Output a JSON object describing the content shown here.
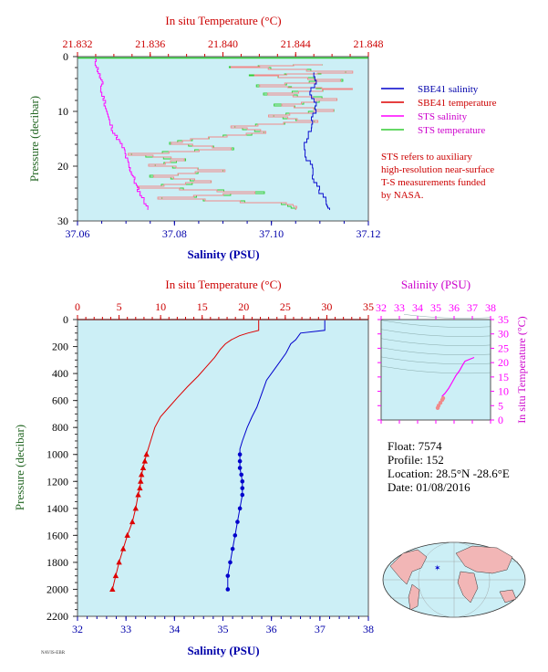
{
  "float_info": {
    "float": "Float:  7574",
    "profile": "Profile:  152",
    "location": "Location:  28.5°N  -28.6°E",
    "date": "Date:  01/08/2016"
  },
  "footer_code": "NAVIS-EBR",
  "colors": {
    "plot_bg": "#cceff6",
    "temp": "#dd0000",
    "sal": "#0000cc",
    "sts_sal": "#ff00ff",
    "sts_temp": "#33cc33",
    "temp_axis": "#cc0000",
    "sal_axis": "#0000aa",
    "pressure_axis": "#226622"
  },
  "chart_data": [
    {
      "type": "line",
      "name": "near-surface",
      "title_top": "In situ Temperature (°C)",
      "xlabel": "Salinity (PSU)",
      "ylabel": "Pressure (decibar)",
      "temp_lim": [
        21.832,
        21.848
      ],
      "temp_ticks": [
        "21.832",
        "21.836",
        "21.840",
        "21.844",
        "21.848"
      ],
      "sal_lim": [
        37.06,
        37.12
      ],
      "sal_ticks": [
        "37.06",
        "37.08",
        "37.10",
        "37.12"
      ],
      "p_lim": [
        0,
        30
      ],
      "p_ticks": [
        "0",
        "10",
        "20",
        "30"
      ],
      "legend": [
        "SBE41 salinity",
        "SBE41 temperature",
        "STS salinity",
        "STS temperature"
      ],
      "note": [
        "STS refers to auxiliary",
        "high-resolution near-surface",
        "T-S measurements funded",
        "by NASA."
      ],
      "sts_salinity": [
        [
          37.0635,
          0.5
        ],
        [
          37.064,
          2
        ],
        [
          37.0645,
          3.5
        ],
        [
          37.065,
          5
        ],
        [
          37.0648,
          6.5
        ],
        [
          37.0655,
          8
        ],
        [
          37.066,
          10
        ],
        [
          37.0665,
          12
        ],
        [
          37.0675,
          14
        ],
        [
          37.0685,
          15.5
        ],
        [
          37.0695,
          17
        ],
        [
          37.07,
          18.5
        ],
        [
          37.0705,
          20
        ],
        [
          37.071,
          21
        ],
        [
          37.0715,
          22
        ],
        [
          37.072,
          23.5
        ],
        [
          37.0728,
          25
        ],
        [
          37.0738,
          26.5
        ],
        [
          37.0745,
          28
        ]
      ],
      "sts_temperature": [
        [
          21.8455,
          1.5
        ],
        [
          21.8405,
          2
        ],
        [
          21.847,
          3
        ],
        [
          21.8415,
          3.5
        ],
        [
          21.8465,
          4.5
        ],
        [
          21.842,
          5.5
        ],
        [
          21.847,
          6
        ],
        [
          21.8425,
          7
        ],
        [
          21.8465,
          8
        ],
        [
          21.843,
          9
        ],
        [
          21.846,
          10
        ],
        [
          21.8425,
          11
        ],
        [
          21.845,
          12
        ],
        [
          21.8405,
          13
        ],
        [
          21.8425,
          14
        ],
        [
          21.839,
          15
        ],
        [
          21.837,
          16
        ],
        [
          21.8405,
          17
        ],
        [
          21.835,
          18
        ],
        [
          21.838,
          19
        ],
        [
          21.836,
          20
        ],
        [
          21.84,
          21
        ],
        [
          21.836,
          22
        ],
        [
          21.8395,
          23
        ],
        [
          21.8355,
          24
        ],
        [
          21.842,
          25
        ],
        [
          21.8365,
          26
        ],
        [
          21.8435,
          27
        ],
        [
          21.844,
          28
        ]
      ],
      "sbe_salinity": [
        [
          37.1085,
          3
        ],
        [
          37.109,
          5
        ],
        [
          37.108,
          7
        ],
        [
          37.1095,
          9
        ],
        [
          37.1085,
          11
        ],
        [
          37.108,
          13
        ],
        [
          37.1075,
          15
        ],
        [
          37.107,
          17
        ],
        [
          37.1075,
          19
        ],
        [
          37.1085,
          21
        ],
        [
          37.109,
          23
        ],
        [
          37.11,
          25
        ],
        [
          37.1115,
          27
        ],
        [
          37.112,
          28
        ]
      ],
      "sbe_temperature": [
        [
          21.8448,
          3
        ],
        [
          21.8445,
          10
        ]
      ]
    },
    {
      "type": "line",
      "name": "full-profile",
      "title_top": "In situ Temperature (°C)",
      "xlabel": "Salinity (PSU)",
      "ylabel": "Pressure (decibar)",
      "temp_lim": [
        0,
        35
      ],
      "temp_ticks": [
        "0",
        "5",
        "10",
        "15",
        "20",
        "25",
        "30",
        "35"
      ],
      "sal_lim": [
        32,
        38
      ],
      "sal_ticks": [
        "32",
        "33",
        "34",
        "35",
        "36",
        "37",
        "38"
      ],
      "p_lim": [
        0,
        2200
      ],
      "p_ticks": [
        "0",
        "200",
        "400",
        "600",
        "800",
        "1000",
        "1200",
        "1400",
        "1600",
        "1800",
        "2000",
        "2200"
      ],
      "temperature": [
        [
          21.8,
          5
        ],
        [
          21.8,
          80
        ],
        [
          20.5,
          100
        ],
        [
          19.5,
          120
        ],
        [
          18.5,
          150
        ],
        [
          17.8,
          180
        ],
        [
          17.2,
          220
        ],
        [
          16.5,
          280
        ],
        [
          15.5,
          350
        ],
        [
          14.5,
          420
        ],
        [
          13.2,
          500
        ],
        [
          12.0,
          580
        ],
        [
          11.0,
          650
        ],
        [
          10.0,
          720
        ],
        [
          9.3,
          800
        ],
        [
          8.8,
          900
        ],
        [
          8.5,
          960
        ],
        [
          8.3,
          1000
        ],
        [
          8.1,
          1050
        ],
        [
          7.9,
          1100
        ],
        [
          7.7,
          1150
        ],
        [
          7.6,
          1200
        ],
        [
          7.5,
          1250
        ],
        [
          7.3,
          1300
        ],
        [
          7.0,
          1400
        ],
        [
          6.6,
          1500
        ],
        [
          6.0,
          1600
        ],
        [
          5.5,
          1700
        ],
        [
          5.0,
          1800
        ],
        [
          4.6,
          1900
        ],
        [
          4.2,
          2000
        ]
      ],
      "salinity": [
        [
          37.1,
          5
        ],
        [
          37.1,
          80
        ],
        [
          36.6,
          100
        ],
        [
          36.5,
          150
        ],
        [
          36.4,
          180
        ],
        [
          36.3,
          250
        ],
        [
          36.1,
          350
        ],
        [
          35.9,
          450
        ],
        [
          35.8,
          550
        ],
        [
          35.7,
          650
        ],
        [
          35.6,
          720
        ],
        [
          35.5,
          800
        ],
        [
          35.4,
          900
        ],
        [
          35.35,
          960
        ],
        [
          35.35,
          1000
        ],
        [
          35.35,
          1100
        ],
        [
          35.4,
          1200
        ],
        [
          35.4,
          1300
        ],
        [
          35.35,
          1400
        ],
        [
          35.3,
          1500
        ],
        [
          35.25,
          1600
        ],
        [
          35.2,
          1700
        ],
        [
          35.15,
          1800
        ],
        [
          35.1,
          1900
        ],
        [
          35.1,
          2000
        ]
      ],
      "temp_markers": [
        [
          8.3,
          1000
        ],
        [
          8.1,
          1050
        ],
        [
          7.9,
          1100
        ],
        [
          7.7,
          1150
        ],
        [
          7.6,
          1200
        ],
        [
          7.5,
          1250
        ],
        [
          7.3,
          1300
        ],
        [
          7.0,
          1400
        ],
        [
          6.6,
          1500
        ],
        [
          6.0,
          1600
        ],
        [
          5.5,
          1700
        ],
        [
          5.0,
          1800
        ],
        [
          4.6,
          1900
        ],
        [
          4.2,
          2000
        ]
      ],
      "sal_markers": [
        [
          35.35,
          1000
        ],
        [
          35.35,
          1050
        ],
        [
          35.35,
          1100
        ],
        [
          35.38,
          1150
        ],
        [
          35.4,
          1200
        ],
        [
          35.4,
          1250
        ],
        [
          35.4,
          1300
        ],
        [
          35.35,
          1400
        ],
        [
          35.3,
          1500
        ],
        [
          35.25,
          1600
        ],
        [
          35.2,
          1700
        ],
        [
          35.15,
          1800
        ],
        [
          35.1,
          1900
        ],
        [
          35.1,
          2000
        ]
      ]
    },
    {
      "type": "scatter",
      "name": "ts-diagram",
      "title_top": "Salinity (PSU)",
      "ylabel": "In situ Temperature (°C)",
      "sal_lim": [
        32,
        38
      ],
      "sal_ticks": [
        "32",
        "33",
        "34",
        "35",
        "36",
        "37",
        "38"
      ],
      "temp_lim": [
        0,
        35
      ],
      "temp_ticks": [
        "0",
        "5",
        "10",
        "15",
        "20",
        "25",
        "30",
        "35"
      ],
      "trace": [
        [
          35.1,
          4.2
        ],
        [
          35.15,
          5.0
        ],
        [
          35.25,
          6.0
        ],
        [
          35.35,
          7.0
        ],
        [
          35.4,
          7.6
        ],
        [
          35.35,
          8.3
        ],
        [
          35.5,
          9.3
        ],
        [
          35.7,
          11.0
        ],
        [
          35.9,
          13.2
        ],
        [
          36.1,
          15.5
        ],
        [
          36.3,
          17.2
        ],
        [
          36.5,
          19.5
        ],
        [
          36.6,
          20.5
        ],
        [
          37.1,
          21.8
        ]
      ]
    }
  ]
}
